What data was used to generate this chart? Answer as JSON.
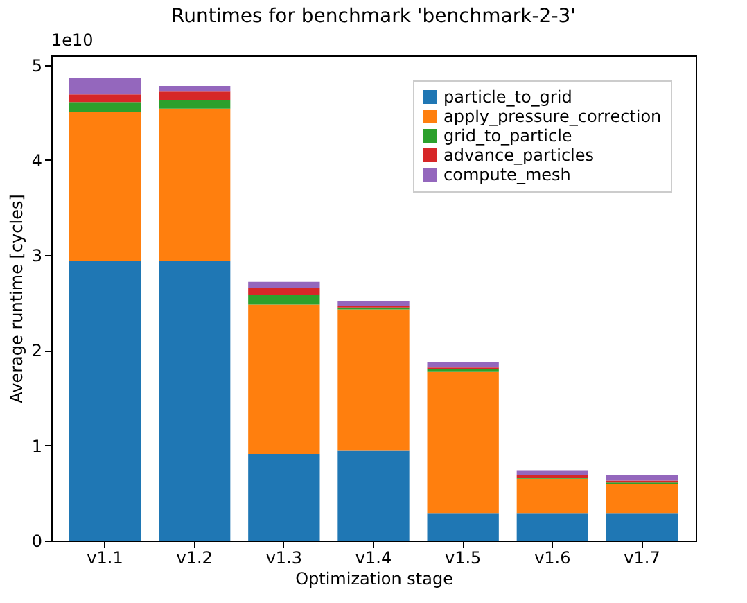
{
  "chart_data": {
    "type": "bar",
    "stacked": true,
    "title": "Runtimes for benchmark 'benchmark-2-3'",
    "xlabel": "Optimization stage",
    "ylabel": "Average runtime [cycles]",
    "annotations": [
      "1e10"
    ],
    "categories": [
      "v1.1",
      "v1.2",
      "v1.3",
      "v1.4",
      "v1.5",
      "v1.6",
      "v1.7"
    ],
    "series": [
      {
        "name": "particle_to_grid",
        "color": "#1f77b4",
        "values": [
          2.94,
          2.94,
          0.91,
          0.95,
          0.29,
          0.29,
          0.29
        ]
      },
      {
        "name": "apply_pressure_correction",
        "color": "#ff7f0e",
        "values": [
          1.57,
          1.6,
          1.57,
          1.48,
          1.49,
          0.36,
          0.3
        ]
      },
      {
        "name": "grid_to_particle",
        "color": "#2ca02c",
        "values": [
          0.1,
          0.09,
          0.1,
          0.02,
          0.02,
          0.01,
          0.02
        ]
      },
      {
        "name": "advance_particles",
        "color": "#d62728",
        "values": [
          0.08,
          0.09,
          0.08,
          0.02,
          0.02,
          0.03,
          0.02
        ]
      },
      {
        "name": "compute_mesh",
        "color": "#9467bd",
        "values": [
          0.17,
          0.06,
          0.06,
          0.05,
          0.06,
          0.05,
          0.06
        ]
      }
    ],
    "ylim": [
      0,
      5.1
    ],
    "yticks": [
      0,
      1,
      2,
      3,
      4,
      5
    ],
    "legend": "top right",
    "grid": false
  }
}
